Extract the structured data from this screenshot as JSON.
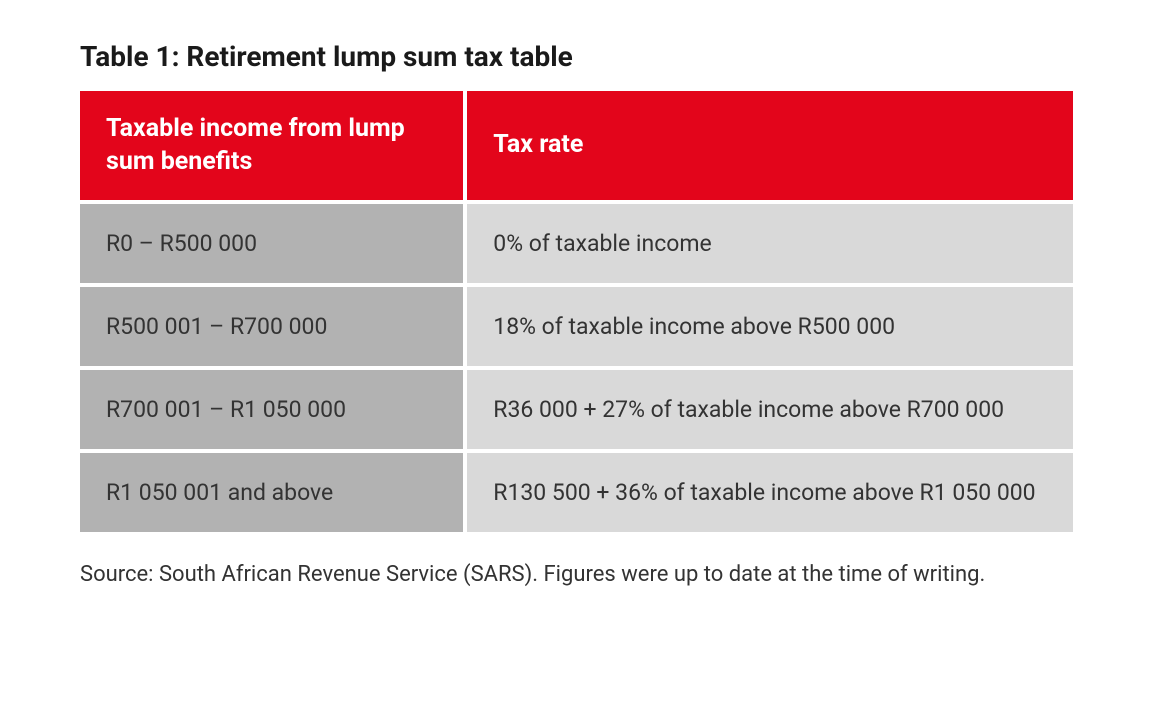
{
  "title": "Table 1: Retirement lump sum tax table",
  "table": {
    "type": "table",
    "header_bg_color": "#e3051b",
    "header_text_color": "#ffffff",
    "col1_bg_color": "#b2b2b2",
    "col2_bg_color": "#d9d9d9",
    "border_color": "#ffffff",
    "columns": [
      "Taxable income from lump sum benefits",
      "Tax rate"
    ],
    "rows": [
      {
        "income": "R0 – R500 000",
        "rate": "0% of taxable income"
      },
      {
        "income": "R500 001 – R700 000",
        "rate": "18% of taxable income above R500 000"
      },
      {
        "income": "R700 001 – R1 050 000",
        "rate": "R36 000 + 27% of taxable income above R700 000"
      },
      {
        "income": "R1 050 001 and above",
        "rate": "R130 500 + 36% of taxable income above R1 050 000"
      }
    ]
  },
  "source": "Source: South African Revenue Service (SARS). Figures were up to date at the time of writing."
}
